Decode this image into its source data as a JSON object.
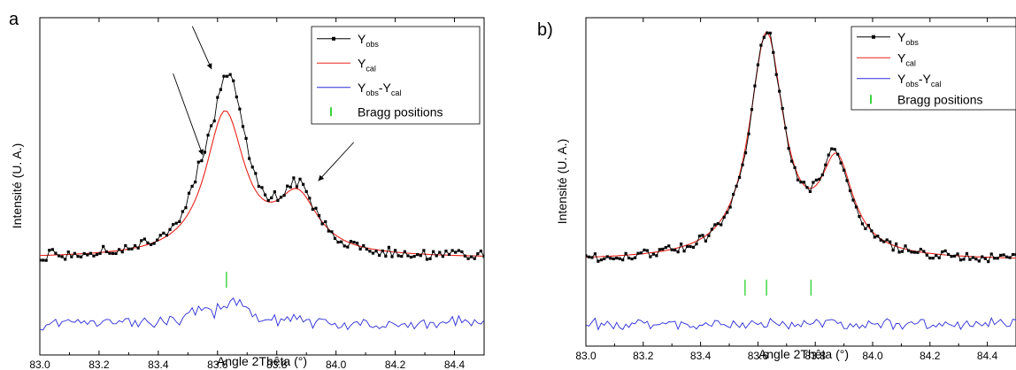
{
  "chart_data": [
    {
      "type": "line",
      "panel_label": "a",
      "xlabel": "Angle 2Thêta (°)",
      "ylabel": "Intensité (U. A.)",
      "xlim": [
        83.0,
        84.5
      ],
      "ylim": [
        -0.45,
        1.12
      ],
      "x_ticks": [
        "83.0",
        "83.2",
        "83.4",
        "83.6",
        "83.8",
        "84.0",
        "84.2",
        "84.4"
      ],
      "y_ticks_labeled": false,
      "grid": false,
      "legend": {
        "placement": "top-right",
        "entries": [
          {
            "main": "Y",
            "sub": "obs",
            "color": "#000000",
            "marker": "square"
          },
          {
            "main": "Y",
            "sub": "cal",
            "color": "#e8231b",
            "marker": "none"
          },
          {
            "main": "Y",
            "sub": "obs",
            "main2": "-Y",
            "sub2": "cal",
            "color": "#2b2bd6",
            "marker": "none"
          },
          {
            "main": "Bragg positions",
            "color": "#3ad23a",
            "marker": "tick"
          }
        ]
      },
      "series": [
        {
          "role": "obs",
          "color": "#000000",
          "peaks": [
            {
              "center": 83.635,
              "height": 0.8,
              "width": 0.075
            },
            {
              "center": 83.87,
              "height": 0.28,
              "width": 0.075
            }
          ],
          "shoulder": {
            "center": 83.54,
            "height": 0.12,
            "width": 0.05
          },
          "baseline": 0.0,
          "noise": 0.025
        },
        {
          "role": "cal",
          "color": "#e8231b",
          "peaks": [
            {
              "center": 83.625,
              "height": 0.66,
              "width": 0.08
            },
            {
              "center": 83.87,
              "height": 0.26,
              "width": 0.085
            }
          ],
          "baseline": 0.0
        },
        {
          "role": "diff",
          "color": "#2b2bd6",
          "offset": -0.3,
          "noise": 0.022
        }
      ],
      "bragg_positions": [
        83.63
      ],
      "bragg_level": -0.1,
      "arrows": [
        {
          "tip": [
            83.55,
            0.48
          ],
          "tail": [
            83.45,
            0.86
          ]
        },
        {
          "tip": [
            83.58,
            0.88
          ],
          "tail": [
            83.515,
            1.08
          ]
        },
        {
          "tip": [
            83.94,
            0.36
          ],
          "tail": [
            84.06,
            0.54
          ]
        }
      ]
    },
    {
      "type": "line",
      "panel_label": "b)",
      "xlabel": "Angle 2Thêta (°)",
      "ylabel": "Intensité (U. A.)",
      "xlim": [
        83.0,
        84.5
      ],
      "ylim": [
        -0.38,
        1.08
      ],
      "x_ticks": [
        "83.0",
        "83.2",
        "83.4",
        "83.6",
        "83.8",
        "84.0",
        "84.2",
        "84.4"
      ],
      "y_ticks_labeled": false,
      "grid": false,
      "legend": {
        "placement": "top-right",
        "entries": [
          {
            "main": "Y",
            "sub": "obs",
            "color": "#000000",
            "marker": "square"
          },
          {
            "main": "Y",
            "sub": "cal",
            "color": "#e8231b",
            "marker": "none"
          },
          {
            "main": "Y",
            "sub": "obs",
            "main2": "-Y",
            "sub2": "cal",
            "color": "#2b2bd6",
            "marker": "none"
          },
          {
            "main": "Bragg positions",
            "color": "#3ad23a",
            "marker": "tick"
          }
        ]
      },
      "series": [
        {
          "role": "obs",
          "color": "#000000",
          "peaks": [
            {
              "center": 83.63,
              "height": 1.0,
              "width": 0.07
            },
            {
              "center": 83.87,
              "height": 0.42,
              "width": 0.065
            }
          ],
          "baseline": 0.0,
          "noise": 0.02
        },
        {
          "role": "cal",
          "color": "#e8231b",
          "peaks": [
            {
              "center": 83.63,
              "height": 0.99,
              "width": 0.072
            },
            {
              "center": 83.875,
              "height": 0.4,
              "width": 0.068
            }
          ],
          "baseline": 0.0
        },
        {
          "role": "diff",
          "color": "#2b2bd6",
          "offset": -0.28,
          "noise": 0.018
        }
      ],
      "bragg_positions": [
        83.555,
        83.63,
        83.785
      ],
      "bragg_level": -0.12
    }
  ]
}
